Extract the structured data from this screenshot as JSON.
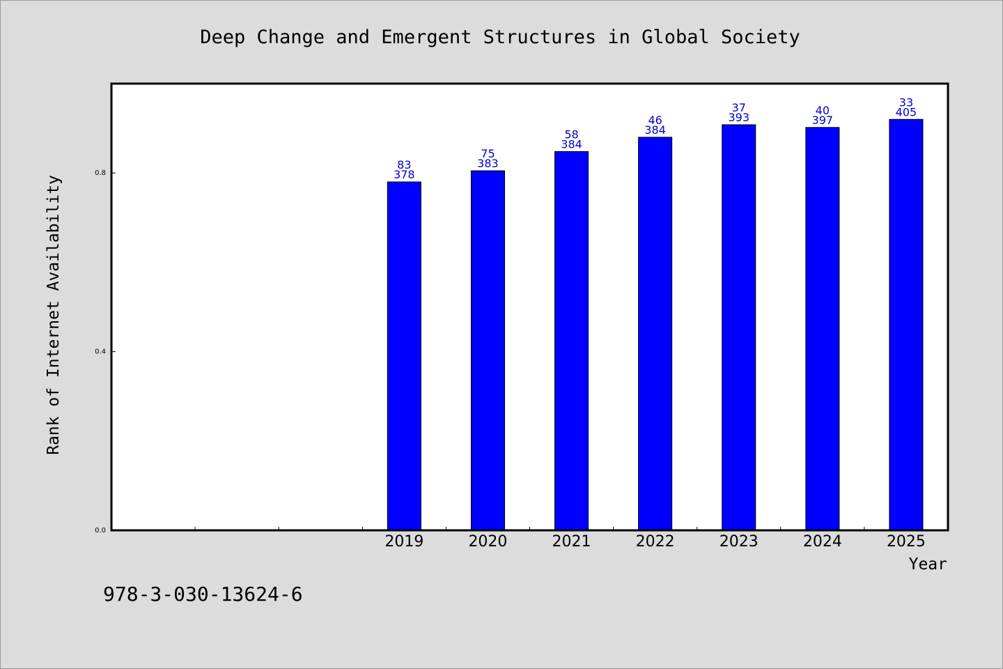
{
  "chart_data": {
    "type": "bar",
    "title": "Deep Change and Emergent Structures in Global Society",
    "xlabel": "Year",
    "ylabel": "Rank of Internet Availability",
    "categories": [
      "",
      "",
      "",
      "2019",
      "2020",
      "2021",
      "2022",
      "2023",
      "2024",
      "2025"
    ],
    "values": [
      null,
      null,
      null,
      0.78,
      0.805,
      0.848,
      0.88,
      0.908,
      0.902,
      0.92
    ],
    "labels_top": [
      "",
      "",
      "",
      "83",
      "75",
      "58",
      "46",
      "37",
      "40",
      "33"
    ],
    "labels_bottom": [
      "",
      "",
      "",
      "378",
      "383",
      "384",
      "384",
      "393",
      "397",
      "405"
    ],
    "ylim": [
      0,
      1.0
    ],
    "yticks": [
      0.0,
      0.4,
      0.8
    ],
    "ytick_labels": [
      "0.0",
      "0.4",
      "0.8"
    ],
    "bar_color": "#0000ff",
    "label_color": "#0000cc",
    "grid": false
  },
  "footer": {
    "isbn": "978-3-030-13624-6"
  }
}
